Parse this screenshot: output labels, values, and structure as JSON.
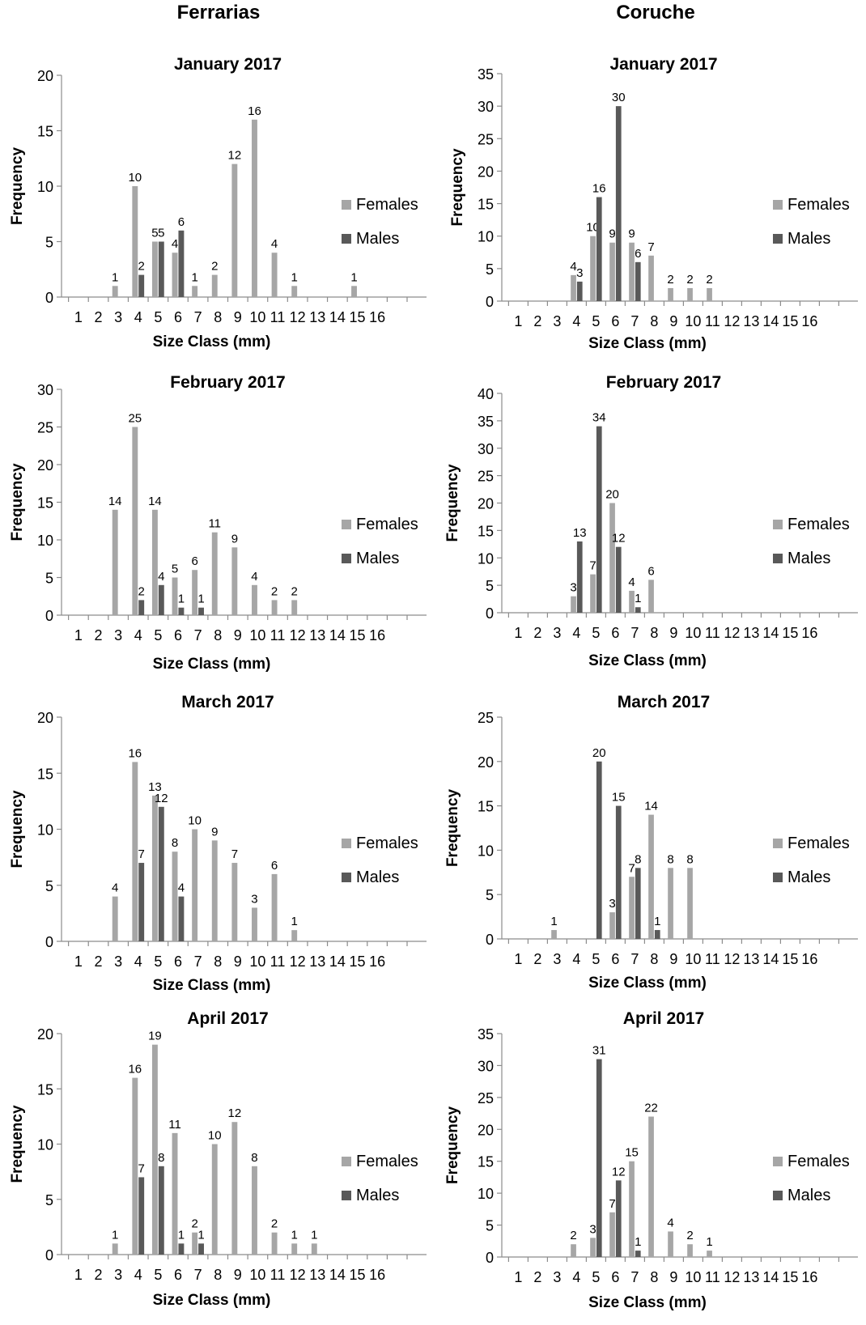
{
  "columns": [
    "Ferrarias",
    "Coruche"
  ],
  "legend": {
    "females": "Females",
    "males": "Males"
  },
  "colors": {
    "females": "#a6a6a6",
    "males": "#595959",
    "axis": "#8c8c8c"
  },
  "chart_data": [
    {
      "type": "bar",
      "site": "Ferrarias",
      "title": "January 2017",
      "xlabel": "Size Class (mm)",
      "ylabel": "Frequency",
      "categories": [
        "1",
        "2",
        "3",
        "4",
        "5",
        "6",
        "7",
        "8",
        "9",
        "10",
        "11",
        "12",
        "13",
        "14",
        "15",
        "16"
      ],
      "ylim": [
        0,
        20
      ],
      "yticks": [
        0,
        5,
        10,
        15,
        20
      ],
      "series": [
        {
          "name": "Females",
          "values": [
            0,
            0,
            1,
            10,
            5,
            4,
            1,
            2,
            12,
            16,
            4,
            1,
            0,
            0,
            1,
            0
          ]
        },
        {
          "name": "Males",
          "values": [
            0,
            0,
            0,
            2,
            5,
            6,
            0,
            0,
            0,
            0,
            0,
            0,
            0,
            0,
            0,
            0
          ]
        }
      ]
    },
    {
      "type": "bar",
      "site": "Coruche",
      "title": "January 2017",
      "xlabel": "Size Class (mm)",
      "ylabel": "Frequency",
      "categories": [
        "1",
        "2",
        "3",
        "4",
        "5",
        "6",
        "7",
        "8",
        "9",
        "10",
        "11",
        "12",
        "13",
        "14",
        "15",
        "16"
      ],
      "ylim": [
        0,
        35
      ],
      "yticks": [
        0,
        5,
        10,
        15,
        20,
        25,
        30,
        35
      ],
      "series": [
        {
          "name": "Females",
          "values": [
            0,
            0,
            0,
            4,
            10,
            9,
            9,
            7,
            2,
            2,
            2,
            0,
            0,
            0,
            0,
            0
          ]
        },
        {
          "name": "Males",
          "values": [
            0,
            0,
            0,
            3,
            16,
            30,
            6,
            0,
            0,
            0,
            0,
            0,
            0,
            0,
            0,
            0
          ]
        }
      ]
    },
    {
      "type": "bar",
      "site": "Ferrarias",
      "title": "February 2017",
      "xlabel": "Size Class (mm)",
      "ylabel": "Frequency",
      "categories": [
        "1",
        "2",
        "3",
        "4",
        "5",
        "6",
        "7",
        "8",
        "9",
        "10",
        "11",
        "12",
        "13",
        "14",
        "15",
        "16"
      ],
      "ylim": [
        0,
        30
      ],
      "yticks": [
        0,
        5,
        10,
        15,
        20,
        25,
        30
      ],
      "series": [
        {
          "name": "Females",
          "values": [
            0,
            0,
            14,
            25,
            14,
            5,
            6,
            11,
            9,
            4,
            2,
            2,
            0,
            0,
            0,
            0
          ]
        },
        {
          "name": "Males",
          "values": [
            0,
            0,
            0,
            2,
            4,
            1,
            1,
            0,
            0,
            0,
            0,
            0,
            0,
            0,
            0,
            0
          ]
        }
      ]
    },
    {
      "type": "bar",
      "site": "Coruche",
      "title": "February 2017",
      "xlabel": "Size Class (mm)",
      "ylabel": "Frequency",
      "categories": [
        "1",
        "2",
        "3",
        "4",
        "5",
        "6",
        "7",
        "8",
        "9",
        "10",
        "11",
        "12",
        "13",
        "14",
        "15",
        "16"
      ],
      "ylim": [
        0,
        40
      ],
      "yticks": [
        0,
        5,
        10,
        15,
        20,
        25,
        30,
        35,
        40
      ],
      "series": [
        {
          "name": "Females",
          "values": [
            0,
            0,
            0,
            3,
            7,
            20,
            4,
            6,
            0,
            0,
            0,
            0,
            0,
            0,
            0,
            0
          ]
        },
        {
          "name": "Males",
          "values": [
            0,
            0,
            0,
            13,
            34,
            12,
            1,
            0,
            0,
            0,
            0,
            0,
            0,
            0,
            0,
            0
          ]
        }
      ]
    },
    {
      "type": "bar",
      "site": "Ferrarias",
      "title": "March 2017",
      "xlabel": "Size Class (mm)",
      "ylabel": "Frequency",
      "categories": [
        "1",
        "2",
        "3",
        "4",
        "5",
        "6",
        "7",
        "8",
        "9",
        "10",
        "11",
        "12",
        "13",
        "14",
        "15",
        "16"
      ],
      "ylim": [
        0,
        20
      ],
      "yticks": [
        0,
        5,
        10,
        15,
        20
      ],
      "series": [
        {
          "name": "Females",
          "values": [
            0,
            0,
            4,
            16,
            13,
            8,
            10,
            9,
            7,
            3,
            6,
            1,
            0,
            0,
            0,
            0
          ]
        },
        {
          "name": "Males",
          "values": [
            0,
            0,
            0,
            7,
            12,
            4,
            0,
            0,
            0,
            0,
            0,
            0,
            0,
            0,
            0,
            0
          ]
        }
      ]
    },
    {
      "type": "bar",
      "site": "Coruche",
      "title": "March 2017",
      "xlabel": "Size Class (mm)",
      "ylabel": "Frequency",
      "categories": [
        "1",
        "2",
        "3",
        "4",
        "5",
        "6",
        "7",
        "8",
        "9",
        "10",
        "11",
        "12",
        "13",
        "14",
        "15",
        "16"
      ],
      "ylim": [
        0,
        25
      ],
      "yticks": [
        0,
        5,
        10,
        15,
        20,
        25
      ],
      "series": [
        {
          "name": "Females",
          "values": [
            0,
            0,
            1,
            0,
            0,
            3,
            7,
            14,
            8,
            8,
            0,
            0,
            0,
            0,
            0,
            0
          ]
        },
        {
          "name": "Males",
          "values": [
            0,
            0,
            0,
            0,
            20,
            15,
            8,
            1,
            0,
            0,
            0,
            0,
            0,
            0,
            0,
            0
          ]
        }
      ]
    },
    {
      "type": "bar",
      "site": "Ferrarias",
      "title": "April 2017",
      "xlabel": "Size Class (mm)",
      "ylabel": "Frequency",
      "categories": [
        "1",
        "2",
        "3",
        "4",
        "5",
        "6",
        "7",
        "8",
        "9",
        "10",
        "11",
        "12",
        "13",
        "14",
        "15",
        "16"
      ],
      "ylim": [
        0,
        20
      ],
      "yticks": [
        0,
        5,
        10,
        15,
        20
      ],
      "series": [
        {
          "name": "Females",
          "values": [
            0,
            0,
            1,
            16,
            19,
            11,
            2,
            10,
            12,
            8,
            2,
            1,
            1,
            0,
            0,
            0
          ]
        },
        {
          "name": "Males",
          "values": [
            0,
            0,
            0,
            7,
            8,
            1,
            1,
            0,
            0,
            0,
            0,
            0,
            0,
            0,
            0,
            0
          ]
        }
      ]
    },
    {
      "type": "bar",
      "site": "Coruche",
      "title": "April 2017",
      "xlabel": "Size Class (mm)",
      "ylabel": "Frequency",
      "categories": [
        "1",
        "2",
        "3",
        "4",
        "5",
        "6",
        "7",
        "8",
        "9",
        "10",
        "11",
        "12",
        "13",
        "14",
        "15",
        "16"
      ],
      "ylim": [
        0,
        35
      ],
      "yticks": [
        0,
        5,
        10,
        15,
        20,
        25,
        30,
        35
      ],
      "series": [
        {
          "name": "Females",
          "values": [
            0,
            0,
            0,
            2,
            3,
            7,
            15,
            22,
            4,
            2,
            1,
            0,
            0,
            0,
            0,
            0
          ]
        },
        {
          "name": "Males",
          "values": [
            0,
            0,
            0,
            0,
            31,
            12,
            1,
            0,
            0,
            0,
            0,
            0,
            0,
            0,
            0,
            0
          ]
        }
      ]
    }
  ]
}
